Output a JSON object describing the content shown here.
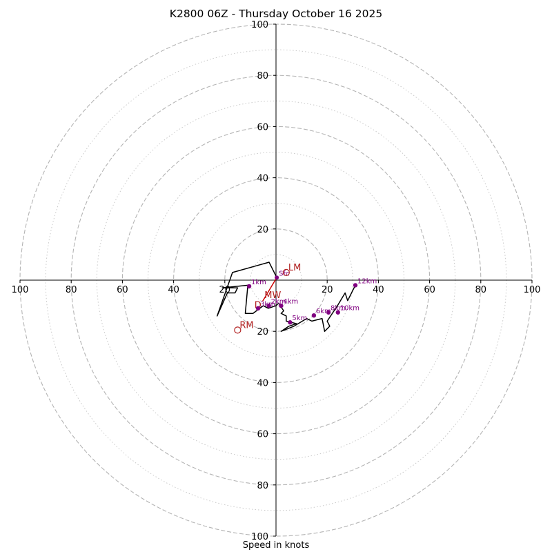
{
  "chart_data": {
    "type": "line",
    "title": "K2800 06Z - Thursday October 16 2025",
    "xlabel": "Speed in knots",
    "ylabel": "",
    "xlim": [
      -100,
      100
    ],
    "ylim": [
      -100,
      100
    ],
    "ring_major": [
      20,
      40,
      60,
      80,
      100
    ],
    "ring_minor": [
      10,
      30,
      50,
      70,
      90
    ],
    "x_ticks": [
      {
        "v": -100,
        "label": "100"
      },
      {
        "v": -80,
        "label": "80"
      },
      {
        "v": -60,
        "label": "60"
      },
      {
        "v": -40,
        "label": "40"
      },
      {
        "v": -20,
        "label": "20"
      },
      {
        "v": 20,
        "label": "20"
      },
      {
        "v": 40,
        "label": "40"
      },
      {
        "v": 60,
        "label": "60"
      },
      {
        "v": 80,
        "label": "80"
      },
      {
        "v": 100,
        "label": "100"
      }
    ],
    "y_ticks": [
      {
        "v": 100,
        "label": "100"
      },
      {
        "v": 80,
        "label": "80"
      },
      {
        "v": 60,
        "label": "60"
      },
      {
        "v": 40,
        "label": "40"
      },
      {
        "v": 20,
        "label": "20"
      },
      {
        "v": -20,
        "label": "20"
      },
      {
        "v": -40,
        "label": "40"
      },
      {
        "v": -60,
        "label": "60"
      },
      {
        "v": -80,
        "label": "80"
      },
      {
        "v": -100,
        "label": "100"
      }
    ],
    "series": [
      {
        "name": "hodograph",
        "color": "#000000",
        "x": [
          0.3,
          -2.7,
          -17,
          -23,
          -19,
          -16,
          -15,
          -21,
          -11,
          -12,
          -9,
          -5,
          -3,
          0,
          1,
          3,
          2,
          4,
          4,
          8,
          5,
          2,
          7,
          12,
          14,
          18,
          19,
          21,
          20,
          24,
          27,
          28,
          30,
          31
        ],
        "y": [
          1,
          7,
          3,
          -14,
          -5,
          -5,
          -3,
          -3,
          -2,
          -13,
          -13,
          -10,
          -11,
          -10,
          -9,
          -12,
          -13,
          -14,
          -16,
          -17,
          -18,
          -20,
          -18,
          -15,
          -16,
          -15,
          -20,
          -18,
          -16,
          -10,
          -5,
          -8,
          -4,
          -2
        ]
      }
    ],
    "height_markers": [
      {
        "label": "Sfc",
        "x": 0.3,
        "y": 1
      },
      {
        "label": "1km",
        "x": -10.5,
        "y": -2.4
      },
      {
        "label": "2km",
        "x": -2.8,
        "y": -10
      },
      {
        "label": "3km",
        "x": -7,
        "y": -11
      },
      {
        "label": "4km",
        "x": 2,
        "y": -10
      },
      {
        "label": "5km",
        "x": 5.5,
        "y": -16.5
      },
      {
        "label": "6km",
        "x": 14.8,
        "y": -13.8
      },
      {
        "label": "8km",
        "x": 20.5,
        "y": -12.6
      },
      {
        "label": "10km",
        "x": 24.2,
        "y": -12.6
      },
      {
        "label": "12km",
        "x": 31,
        "y": -2
      }
    ],
    "storm_motion": [
      {
        "label": "LM",
        "x": 4,
        "y": 3
      },
      {
        "label": "RM",
        "x": -15,
        "y": -19.5
      },
      {
        "label": "MW",
        "x": -4.5,
        "y": -7
      }
    ],
    "shear_vector": {
      "x1": 0.3,
      "y1": 1,
      "x2": -5.2,
      "y2": -8.2
    },
    "shear_marker_label": "D"
  }
}
